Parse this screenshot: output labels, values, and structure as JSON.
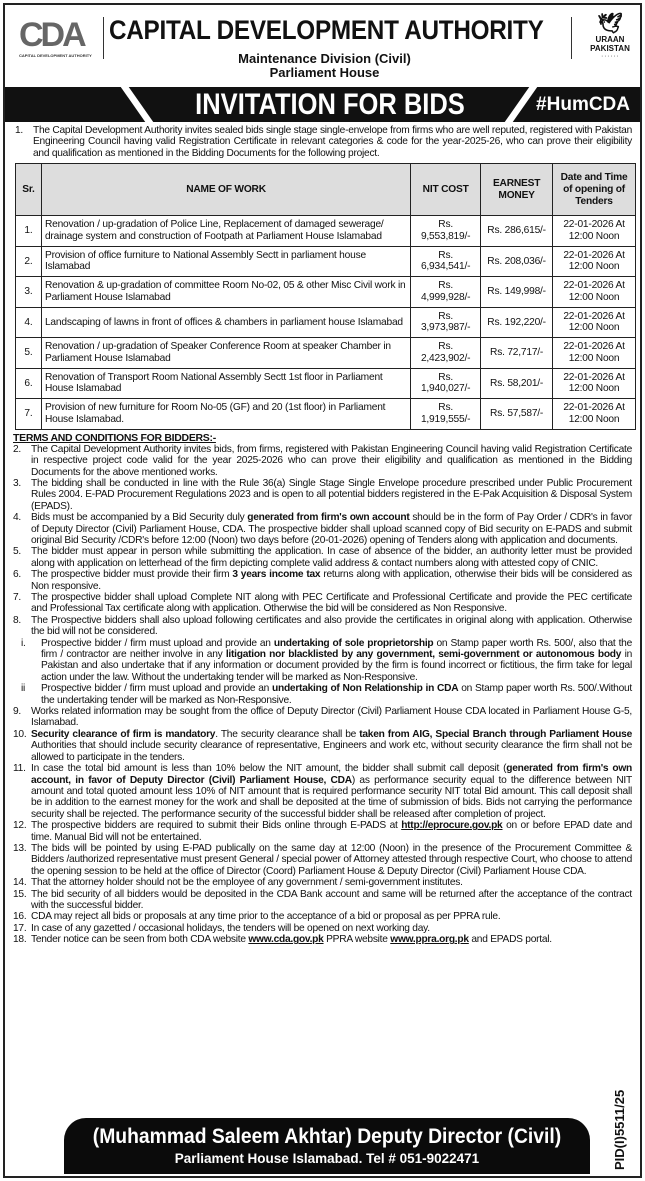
{
  "header": {
    "logo_text": "CDA",
    "logo_subtext": "CAPITAL DEVELOPMENT AUTHORITY",
    "organization": "CAPITAL DEVELOPMENT AUTHORITY",
    "division": "Maintenance Division (Civil)",
    "location": "Parliament House",
    "uraan_line1": "URAAN",
    "uraan_line2": "PAKISTAN"
  },
  "banner": {
    "title": "INVITATION FOR BIDS",
    "hashtag": "#HumCDA"
  },
  "intro": {
    "num": "1.",
    "text": "The Capital Development Authority invites sealed bids single stage single-envelope from firms who are well reputed, registered with Pakistan Engineering Council having valid Registration Certificate in relevant categories & code for the year-2025-26, who can prove their eligibility and qualification as mentioned in the Bidding Documents for the following project."
  },
  "table": {
    "headers": [
      "Sr.",
      "NAME OF WORK",
      "NIT COST",
      "EARNEST MONEY",
      "Date and Time of opening of Tenders"
    ],
    "rows": [
      [
        "1.",
        "Renovation / up-gradation of Police Line, Replacement of damaged sewerage/ drainage system and construction of Footpath at Parliament House Islamabad",
        "Rs. 9,553,819/-",
        "Rs. 286,615/-",
        "22-01-2026 At 12:00 Noon"
      ],
      [
        "2.",
        "Provision of office furniture to National Assembly Sectt in parliament house Islamabad",
        "Rs. 6,934,541/-",
        "Rs. 208,036/-",
        "22-01-2026 At 12:00 Noon"
      ],
      [
        "3.",
        "Renovation & up-gradation of committee Room No-02, 05 & other Misc Civil work in Parliament House Islamabad",
        "Rs. 4,999,928/-",
        "Rs. 149,998/-",
        "22-01-2026 At 12:00 Noon"
      ],
      [
        "4.",
        "Landscaping of lawns in front of offices & chambers in parliament house Islamabad",
        "Rs. 3,973,987/-",
        "Rs. 192,220/-",
        "22-01-2026 At 12:00 Noon"
      ],
      [
        "5.",
        "Renovation / up-gradation of Speaker Conference Room at speaker Chamber in Parliament House Islamabad",
        "Rs. 2,423,902/-",
        "Rs. 72,717/-",
        "22-01-2026 At 12:00 Noon"
      ],
      [
        "6.",
        "Renovation of Transport Room National Assembly Sectt 1st floor in Parliament House Islamabad",
        "Rs. 1,940,027/-",
        "Rs. 58,201/-",
        "22-01-2026 At 12:00 Noon"
      ],
      [
        "7.",
        "Provision of new furniture for Room No-05 (GF) and 20 (1st floor) in Parliament House Islamabad.",
        "Rs. 1,919,555/-",
        "Rs. 57,587/-",
        "22-01-2026 At 12:00 Noon"
      ]
    ]
  },
  "terms": {
    "heading": "TERMS AND CONDITIONS FOR BIDDERS:-",
    "items": [
      {
        "num": "2.",
        "parts": [
          {
            "t": "The Capital Development Authority invites bids, from firms, registered with Pakistan Engineering Council having valid Registration Certificate in respective project code valid for the year 2025-2026 who can prove their eligibility and qualification as mentioned in the Bidding Documents for the above mentioned works."
          }
        ]
      },
      {
        "num": "3.",
        "parts": [
          {
            "t": "The bidding shall be conducted in line with the Rule 36(a) Single Stage Single Envelope procedure prescribed under Public Procurement Rules 2004. E-PAD Procurement Regulations 2023 and is open to all potential bidders registered in the E-Pak Acquisition & Disposal System (EPADS)."
          }
        ]
      },
      {
        "num": "4.",
        "parts": [
          {
            "t": "Bids must be accompanied by a Bid Security duly "
          },
          {
            "t": "generated from firm's own account",
            "b": true
          },
          {
            "t": " should be in the form of Pay Order / CDR's in favor of Deputy Director (Civil) Parliament House, CDA. The prospective bidder shall upload scanned copy of Bid security on E-PADS and submit original Bid Security /CDR's before 12:00 (Noon) two days before (20-01-2026) opening of Tenders along with application and documents."
          }
        ]
      },
      {
        "num": "5.",
        "parts": [
          {
            "t": "The bidder must appear in person while submitting the application. In case of absence of the bidder, an authority letter must be provided along with application on letterhead of the firm depicting complete valid address & contact numbers along with attested copy of CNIC."
          }
        ]
      },
      {
        "num": "6.",
        "parts": [
          {
            "t": "The prospective bidder must provide their firm "
          },
          {
            "t": "3 years income tax",
            "b": true
          },
          {
            "t": " returns along with application, otherwise their bids will be considered as Non responsive."
          }
        ]
      },
      {
        "num": "7.",
        "parts": [
          {
            "t": "The prospective bidder shall upload Complete NIT along with PEC Certificate and Professional Certificate and provide the PEC certificate and Professional Tax certificate along with application. Otherwise the bid will be considered as Non Responsive."
          }
        ]
      },
      {
        "num": "8.",
        "parts": [
          {
            "t": "The Prospective bidders shall also upload following certificates and also provide the certificates in original along with application. Otherwise the bid will not be considered."
          }
        ],
        "sub": [
          {
            "num": "i.",
            "parts": [
              {
                "t": "Prospective bidder / firm must upload and provide an "
              },
              {
                "t": "undertaking of sole proprietorship",
                "b": true
              },
              {
                "t": " on Stamp paper worth Rs. 500/, also that the firm / contractor are neither involve in any "
              },
              {
                "t": "litigation nor blacklisted by any government, semi-government or autonomous body",
                "b": true
              },
              {
                "t": " in Pakistan and also undertake that if any information or document provided by the firm is found incorrect or fictitious, the firm take for legal action under the law. Without the undertaking tender will be marked as Non-Responsive."
              }
            ]
          },
          {
            "num": "ii",
            "parts": [
              {
                "t": "Prospective bidder / firm must upload and provide an "
              },
              {
                "t": "undertaking of Non Relationship in CDA",
                "b": true
              },
              {
                "t": " on Stamp paper worth Rs. 500/.Without the undertaking tender will be marked as Non-Responsive."
              }
            ]
          }
        ]
      },
      {
        "num": "9.",
        "parts": [
          {
            "t": "Works related information may be sought from the office of Deputy Director (Civil) Parliament House CDA located in Parliament House G-5, Islamabad."
          }
        ]
      },
      {
        "num": "10.",
        "parts": [
          {
            "t": "Security clearance of firm is mandatory",
            "b": true
          },
          {
            "t": ". The security clearance shall be "
          },
          {
            "t": "taken from AIG, Special Branch through Parliament House",
            "b": true
          },
          {
            "t": " Authorities that should include security clearance of representative, Engineers and work etc, without security clearance the firm shall not be allowed to participate in the tenders."
          }
        ]
      },
      {
        "num": "11.",
        "parts": [
          {
            "t": "In case the total bid amount is less than 10% below the NIT amount, the bidder shall submit call deposit ("
          },
          {
            "t": "generated from firm's own account, in favor of Deputy Director (Civil) Parliament House, CDA",
            "b": true
          },
          {
            "t": ") as performance security equal to the difference between NIT amount and total quoted amount less 10% of NIT amount that is required performance security NIT total Bid amount. This call deposit shall be in addition to the earnest money for the work and shall be deposited at the time of submission of bids. Bids not carrying the performance security shall be rejected. The performance security of the successful bidder shall be released after completion of project."
          }
        ]
      },
      {
        "num": "12.",
        "parts": [
          {
            "t": "The prospective bidders are required to submit their Bids online through E-PADS at "
          },
          {
            "t": "http://eprocure.gov.pk",
            "u": true
          },
          {
            "t": " on or before EPAD date and time. Manual Bid will not be entertained."
          }
        ]
      },
      {
        "num": "13.",
        "parts": [
          {
            "t": "The bids will be pointed by using E-PAD publically on the same day at 12:00 (Noon) in the presence of the Procurement Committee & Bidders /authorized representative must present General / special power of Attorney attested through respective Court, who choose to attend the opening session to be held at the office of Director (Coord) Parliament House & Deputy Director (Civil) Parliament House CDA."
          }
        ]
      },
      {
        "num": "14.",
        "parts": [
          {
            "t": "That the attorney holder should not be the employee of any government / semi-government institutes."
          }
        ]
      },
      {
        "num": "15.",
        "parts": [
          {
            "t": "The bid security of all bidders would be deposited in the CDA Bank account and same will be returned after the acceptance of the contract with the successful bidder."
          }
        ]
      },
      {
        "num": "16.",
        "parts": [
          {
            "t": "CDA may reject all bids or proposals at any time prior to the acceptance of a bid or proposal as per PPRA rule."
          }
        ]
      },
      {
        "num": "17.",
        "parts": [
          {
            "t": "In case of any gazetted / occasional holidays, the tenders will be opened on next working day."
          }
        ]
      },
      {
        "num": "18.",
        "parts": [
          {
            "t": "Tender notice can be seen from both CDA website "
          },
          {
            "t": "www.cda.gov.pk",
            "u": true
          },
          {
            "t": " PPRA website "
          },
          {
            "t": "www.ppra.org.pk",
            "u": true
          },
          {
            "t": " and EPADS portal."
          }
        ]
      }
    ]
  },
  "footer": {
    "name": "(Muhammad Saleem Akhtar) Deputy Director (Civil)",
    "address": "Parliament House Islamabad. Tel # 051-9022471"
  },
  "pid": "PID(I)5511/25"
}
